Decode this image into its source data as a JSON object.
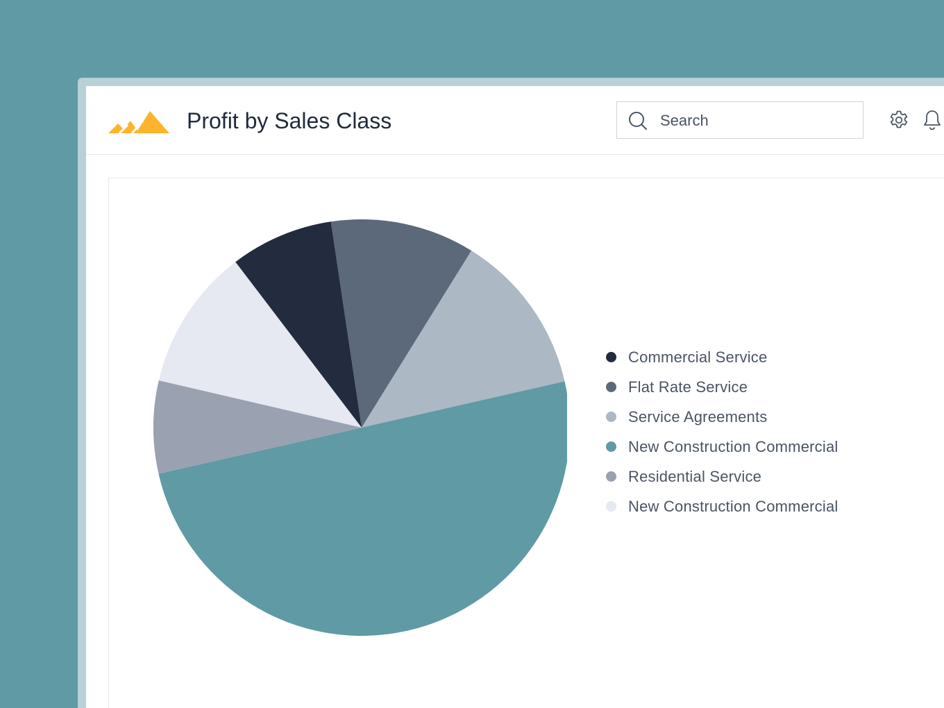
{
  "header": {
    "title": "Profit by Sales Class",
    "search_placeholder": "Search"
  },
  "icons": {
    "logo": "mountain-logo",
    "search": "search-icon",
    "settings": "gear-icon",
    "notifications": "bell-icon"
  },
  "colors": {
    "background": "#5f9aa5",
    "logo": "#fbb42c"
  },
  "chart_data": {
    "type": "pie",
    "title": "",
    "start_angle_deg": -8.5,
    "slices": [
      {
        "label": "Flat Rate Service",
        "value": 11.2,
        "color": "#5c697b"
      },
      {
        "label": "Service Agreements",
        "value": 12.6,
        "color": "#acb8c4"
      },
      {
        "label": "New Construction Commercial",
        "value": 50.0,
        "color": "#5f9aa5"
      },
      {
        "label": "Residential Service",
        "value": 7.2,
        "color": "#9aa1b1"
      },
      {
        "label": "New Construction Commercial",
        "value": 11.0,
        "color": "#e6e8f2"
      },
      {
        "label": "Commercial Service",
        "value": 8.0,
        "color": "#222c3e"
      }
    ],
    "legend": [
      {
        "label": "Commercial Service",
        "color": "#222c3e"
      },
      {
        "label": "Flat Rate Service",
        "color": "#5c697b"
      },
      {
        "label": "Service Agreements",
        "color": "#acb8c4"
      },
      {
        "label": "New Construction Commercial",
        "color": "#5f9aa5"
      },
      {
        "label": "Residential Service",
        "color": "#9aa1b1"
      },
      {
        "label": "New Construction Commercial",
        "color": "#e6e8f2"
      }
    ],
    "legend_position": "right"
  }
}
